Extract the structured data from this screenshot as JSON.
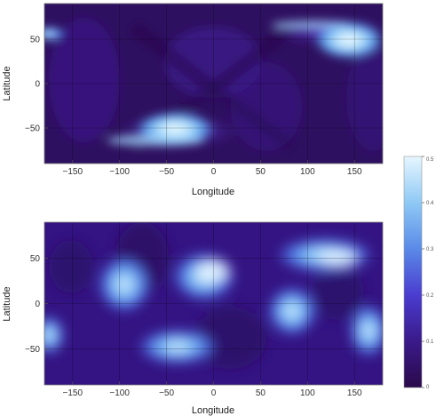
{
  "chart_data": [
    {
      "type": "heatmap",
      "xlabel": "Longitude",
      "ylabel": "Latitude",
      "xlim": [
        -180,
        180
      ],
      "ylim": [
        -90,
        90
      ],
      "x_ticks": [
        -150,
        -100,
        -50,
        0,
        50,
        100,
        150
      ],
      "y_ticks": [
        50,
        0,
        -50
      ],
      "grid": true,
      "hotspots": [
        {
          "lon": -40,
          "lat": -50,
          "value": 0.5
        },
        {
          "lon": 145,
          "lat": 55,
          "value": 0.45
        },
        {
          "lon": -180,
          "lat": 60,
          "value": 0.3
        },
        {
          "lon": 180,
          "lat": 60,
          "value": 0.3
        }
      ]
    },
    {
      "type": "heatmap",
      "xlabel": "Longitude",
      "ylabel": "Latitude",
      "xlim": [
        -180,
        180
      ],
      "ylim": [
        -90,
        90
      ],
      "x_ticks": [
        -150,
        -100,
        -50,
        0,
        50,
        100,
        150
      ],
      "y_ticks": [
        50,
        0,
        -50
      ],
      "grid": true,
      "hotspots": [
        {
          "lon": -105,
          "lat": 15,
          "value": 0.35
        },
        {
          "lon": 0,
          "lat": 30,
          "value": 0.38
        },
        {
          "lon": -40,
          "lat": -50,
          "value": 0.38
        },
        {
          "lon": 140,
          "lat": 55,
          "value": 0.38
        },
        {
          "lon": 85,
          "lat": -15,
          "value": 0.35
        },
        {
          "lon": 170,
          "lat": -25,
          "value": 0.33
        },
        {
          "lon": -175,
          "lat": -35,
          "value": 0.35
        }
      ]
    }
  ],
  "colorbar": {
    "min": 0,
    "max": 0.5,
    "ticks": [
      "0.5",
      "0.4",
      "0.3",
      "0.2",
      "0.1",
      "0"
    ],
    "colors": [
      "#2a0a4a",
      "#3a1a8a",
      "#4a3ccf",
      "#5a8ae8",
      "#8fc9f5",
      "#e6f6ff"
    ]
  }
}
